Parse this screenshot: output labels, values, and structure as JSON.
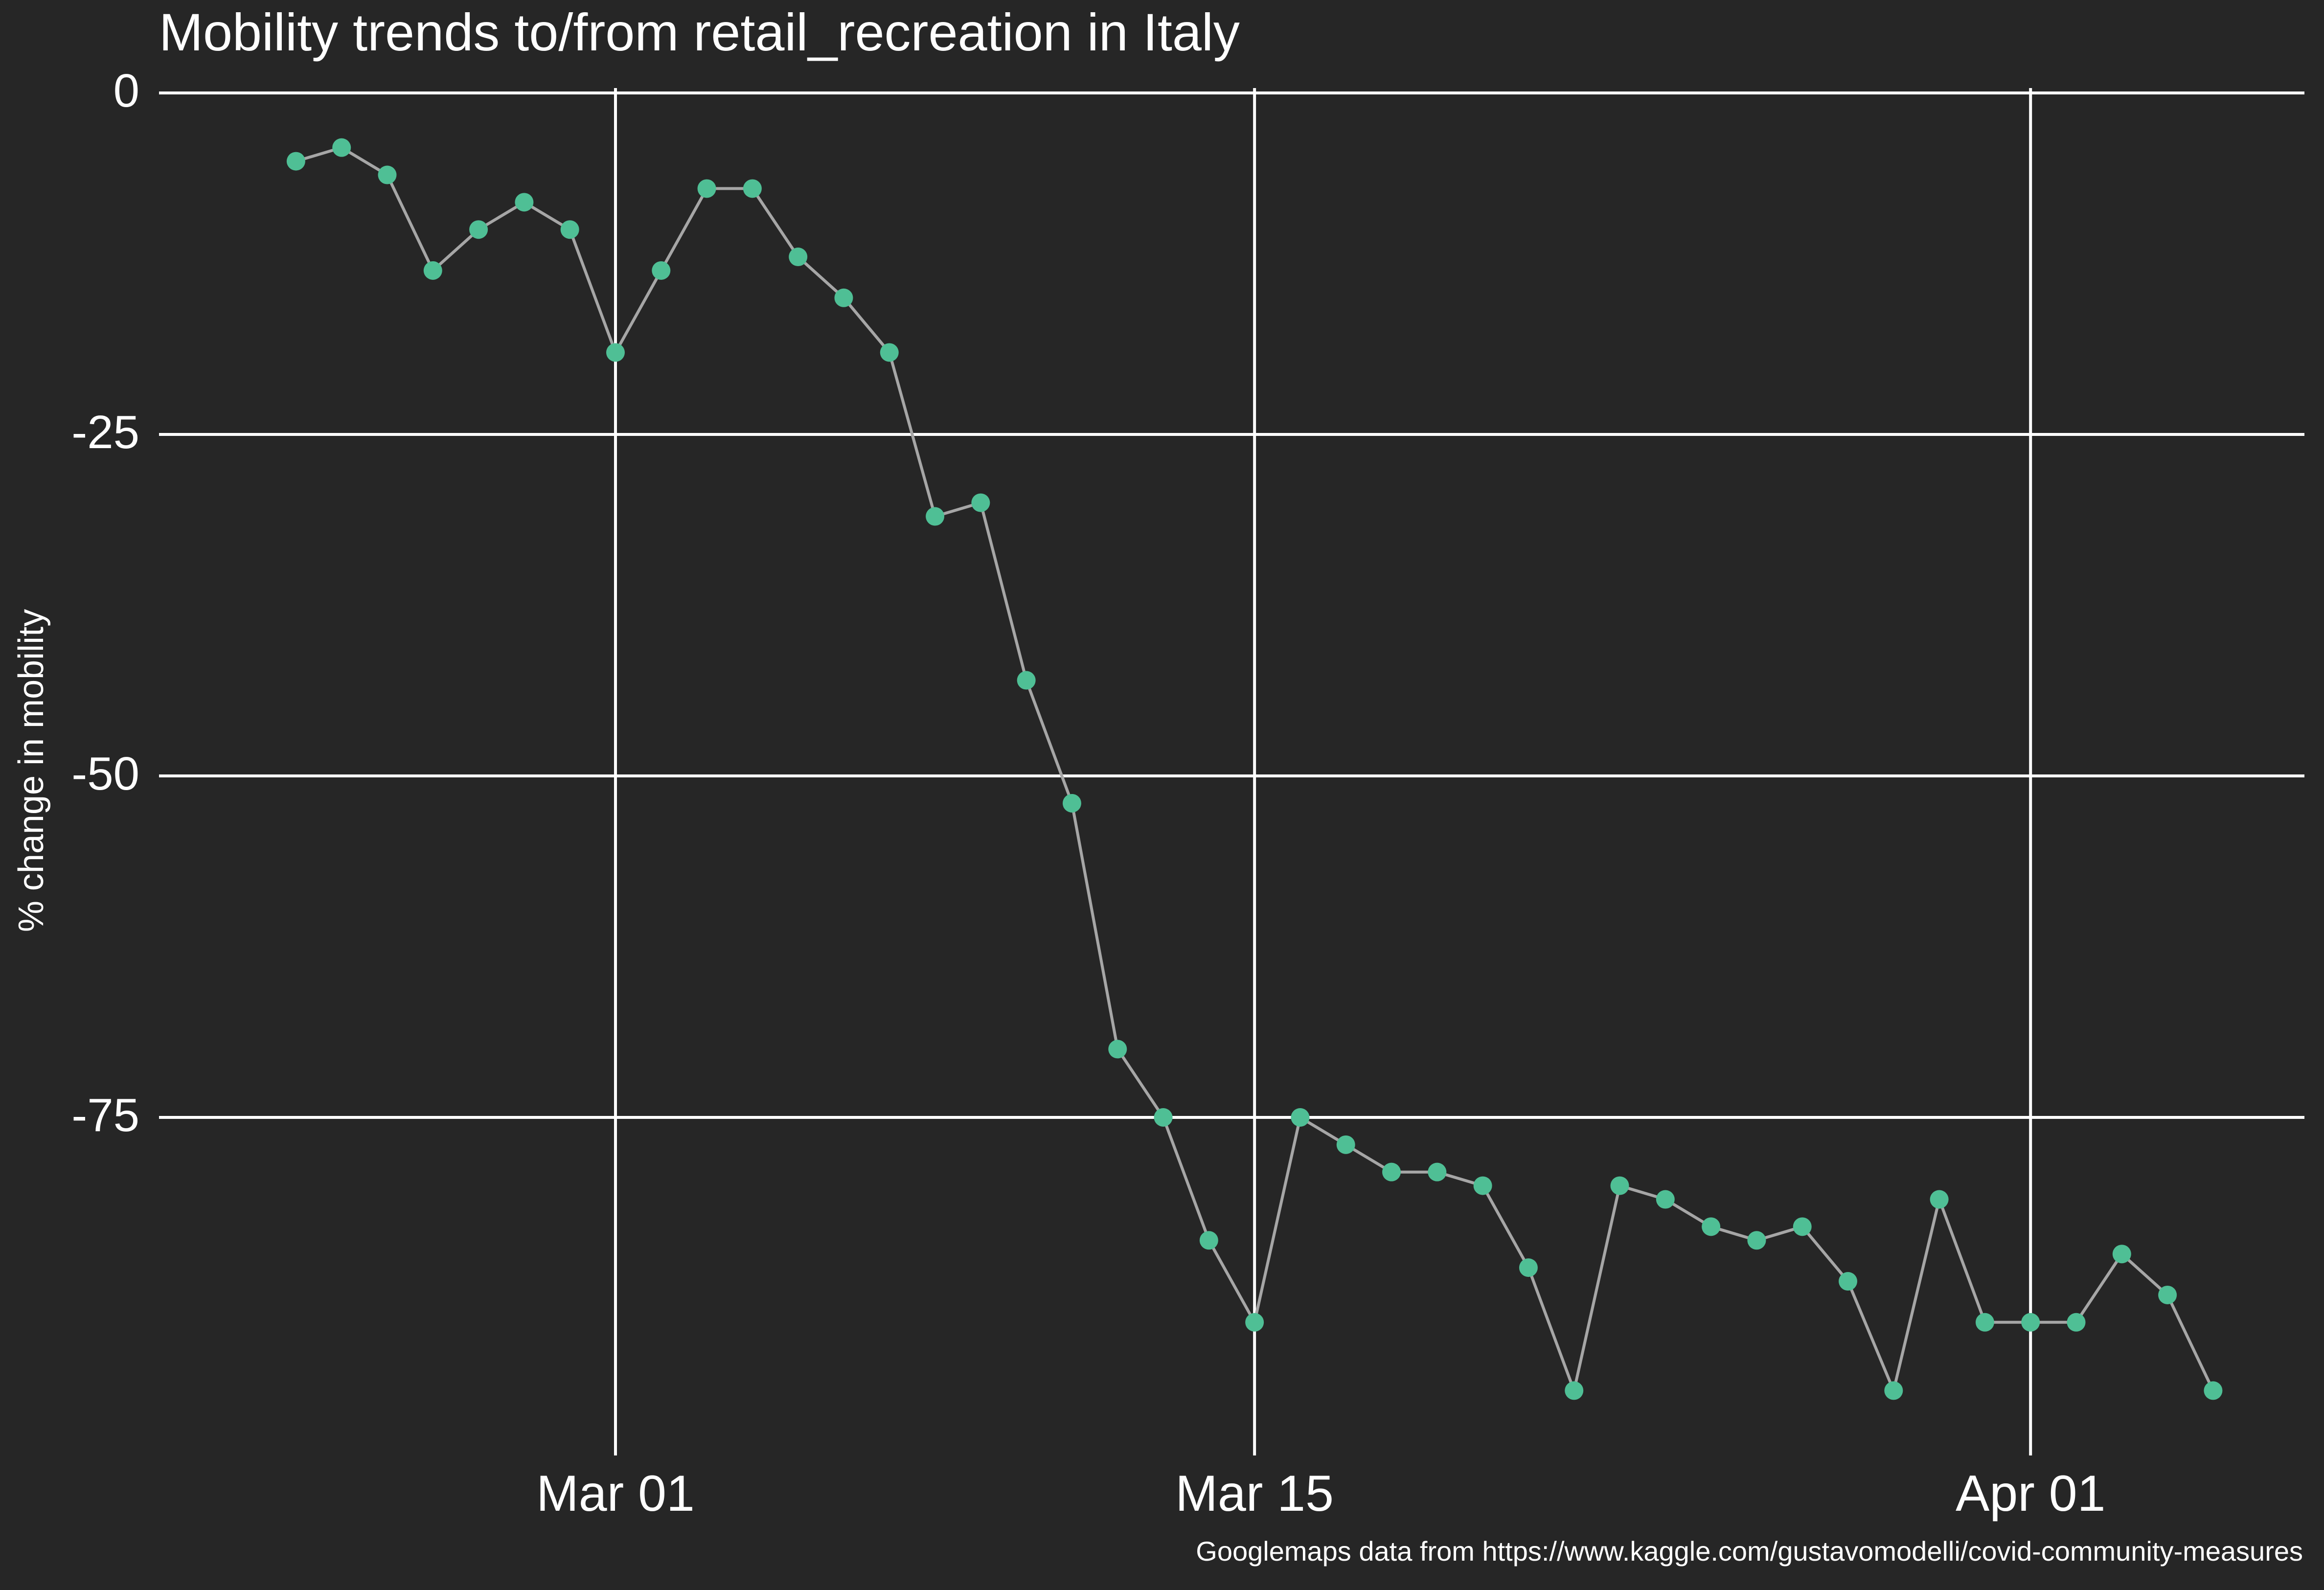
{
  "chart_data": {
    "type": "line",
    "title": "Mobility trends to/from retail_recreation in Italy",
    "ylabel": "% change in mobility",
    "xlabel": "",
    "caption": "Googlemaps data from https://www.kaggle.com/gustavomodelli/covid-community-measures",
    "ylim": [
      -100,
      0
    ],
    "grid": true,
    "y_ticks": [
      {
        "value": 0,
        "label": "0"
      },
      {
        "value": -25,
        "label": "-25"
      },
      {
        "value": -50,
        "label": "-50"
      },
      {
        "value": -75,
        "label": "-75"
      }
    ],
    "x_ticks": [
      {
        "value": "2020-03-01",
        "label": "Mar 01"
      },
      {
        "value": "2020-03-15",
        "label": "Mar 15"
      },
      {
        "value": "2020-04-01",
        "label": "Apr 01"
      }
    ],
    "xlim": [
      "2020-02-20",
      "2020-04-07"
    ],
    "x": [
      "2020-02-23",
      "2020-02-24",
      "2020-02-25",
      "2020-02-26",
      "2020-02-27",
      "2020-02-28",
      "2020-02-29",
      "2020-03-01",
      "2020-03-02",
      "2020-03-03",
      "2020-03-04",
      "2020-03-05",
      "2020-03-06",
      "2020-03-07",
      "2020-03-08",
      "2020-03-09",
      "2020-03-10",
      "2020-03-11",
      "2020-03-12",
      "2020-03-13",
      "2020-03-14",
      "2020-03-15",
      "2020-03-16",
      "2020-03-17",
      "2020-03-18",
      "2020-03-19",
      "2020-03-20",
      "2020-03-21",
      "2020-03-22",
      "2020-03-23",
      "2020-03-24",
      "2020-03-25",
      "2020-03-26",
      "2020-03-27",
      "2020-03-28",
      "2020-03-29",
      "2020-03-30",
      "2020-03-31",
      "2020-04-01",
      "2020-04-02",
      "2020-04-03",
      "2020-04-04",
      "2020-04-05"
    ],
    "values": [
      -5,
      -4,
      -6,
      -13,
      -10,
      -8,
      -10,
      -19,
      -13,
      -7,
      -7,
      -12,
      -15,
      -19,
      -31,
      -30,
      -43,
      -52,
      -70,
      -75,
      -84,
      -90,
      -75,
      -77,
      -79,
      -79,
      -80,
      -86,
      -95,
      -80,
      -81,
      -83,
      -84,
      -83,
      -87,
      -95,
      -81,
      -90,
      -90,
      -90,
      -85,
      -88,
      -95
    ],
    "colors": {
      "background": "#262626",
      "grid": "#ffffff",
      "line": "#a6a6a6",
      "point": "#4fbf95",
      "text": "#ffffff"
    }
  }
}
